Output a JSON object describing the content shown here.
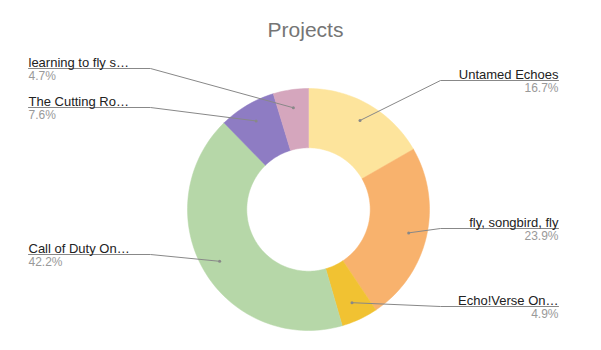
{
  "chart_data": {
    "type": "donut",
    "title": "Projects",
    "categories": [
      "Untamed Echoes",
      "fly, songbird, fly",
      "Echo!Verse On…",
      "Call of Duty On…",
      "The Cutting Ro…",
      "learning to fly s…"
    ],
    "values": [
      16.7,
      23.9,
      4.9,
      42.2,
      7.6,
      4.7
    ],
    "value_labels": [
      "16.7%",
      "23.9%",
      "4.9%",
      "42.2%",
      "7.6%",
      "4.7%"
    ],
    "colors": [
      "#fde49c",
      "#f8b26d",
      "#f1c232",
      "#b6d7a8",
      "#8e7cc3",
      "#d5a6bd"
    ],
    "data_labels": true
  }
}
